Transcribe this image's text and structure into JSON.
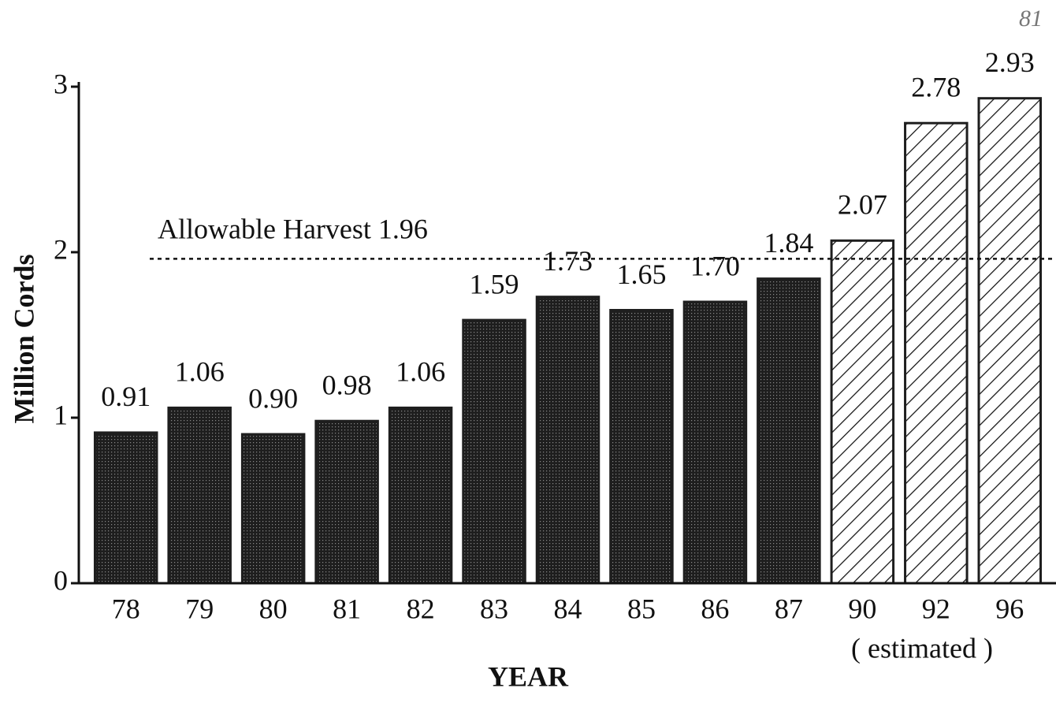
{
  "chart_data": {
    "type": "bar",
    "categories": [
      "78",
      "79",
      "80",
      "81",
      "82",
      "83",
      "84",
      "85",
      "86",
      "87",
      "90",
      "92",
      "96"
    ],
    "values": [
      0.91,
      1.06,
      0.9,
      0.98,
      1.06,
      1.59,
      1.73,
      1.65,
      1.7,
      1.84,
      2.07,
      2.78,
      2.93
    ],
    "value_labels": [
      "0.91",
      "1.06",
      "0.90",
      "0.98",
      "1.06",
      "1.59",
      "1.73",
      "1.65",
      "1.70",
      "1.84",
      "2.07",
      "2.78",
      "2.93"
    ],
    "patterns": [
      "dotted",
      "dotted",
      "dotted",
      "dotted",
      "dotted",
      "dotted",
      "dotted",
      "dotted",
      "dotted",
      "dotted",
      "hatched",
      "hatched",
      "hatched"
    ],
    "color": "#1e1e1e",
    "ylabel": "Million Cords",
    "xlabel": "YEAR",
    "group_label": "( estimated )",
    "reference_line": {
      "label": "Allowable Harvest 1.96",
      "value": 1.96
    },
    "annotation": "81",
    "ylim": [
      0,
      3
    ],
    "yticks": [
      0,
      1,
      2,
      3
    ],
    "grid": false
  }
}
